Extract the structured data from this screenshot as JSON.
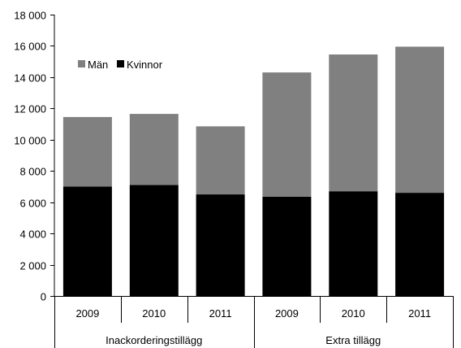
{
  "chart_data": {
    "type": "bar",
    "stacked": true,
    "title": "",
    "xlabel": "",
    "ylabel": "",
    "ylim": [
      0,
      18000
    ],
    "yticks": [
      0,
      2000,
      4000,
      6000,
      8000,
      10000,
      12000,
      14000,
      16000,
      18000
    ],
    "ytick_labels": [
      "0",
      "2 000",
      "4 000",
      "6 000",
      "8 000",
      "10 000",
      "12 000",
      "14 000",
      "16 000",
      "18 000"
    ],
    "grid": false,
    "legend_position": "top-left",
    "groups": [
      {
        "label": "Inackorderingstillägg",
        "categories": [
          "2009",
          "2010",
          "2011"
        ]
      },
      {
        "label": "Extra tillägg",
        "categories": [
          "2009",
          "2010",
          "2011"
        ]
      }
    ],
    "categories": [
      "2009",
      "2010",
      "2011",
      "2009",
      "2010",
      "2011"
    ],
    "series": [
      {
        "name": "Kvinnor",
        "color": "#000000",
        "values": [
          7000,
          7100,
          6500,
          6350,
          6700,
          6600
        ]
      },
      {
        "name": "Män",
        "color": "#808080",
        "values": [
          4450,
          4550,
          4350,
          7950,
          8750,
          9350
        ]
      }
    ],
    "legend_order": [
      "Män",
      "Kvinnor"
    ]
  }
}
